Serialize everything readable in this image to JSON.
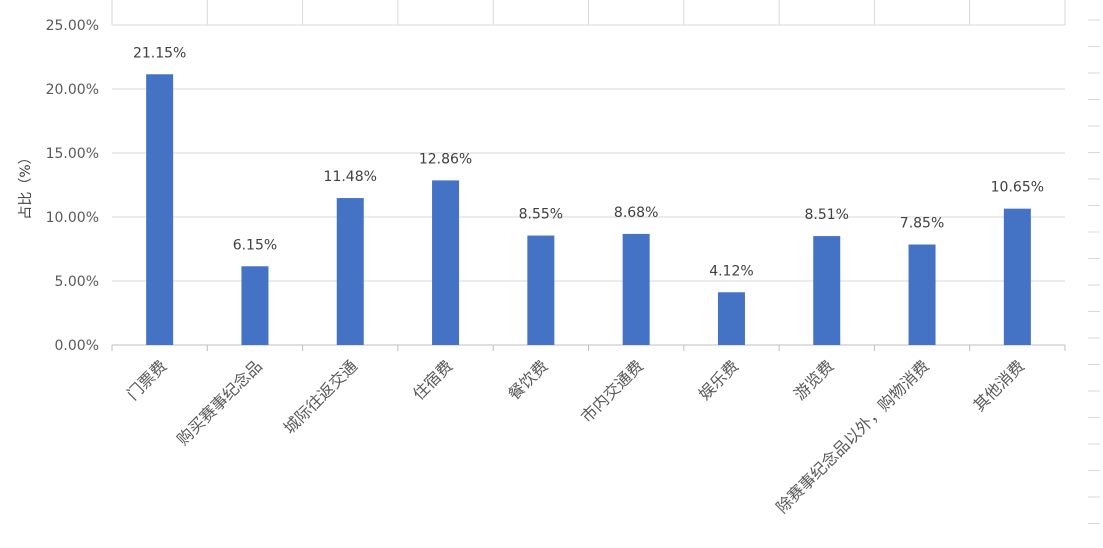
{
  "chart_data": {
    "type": "bar",
    "ylabel": "占比（%）",
    "ylim": [
      0,
      25
    ],
    "yticks": [
      "0.00%",
      "5.00%",
      "10.00%",
      "15.00%",
      "20.00%",
      "25.00%"
    ],
    "grid": true,
    "bar_color": "#4472C4",
    "categories": [
      "门票费",
      "购买赛事纪念品",
      "城际往返交通",
      "住宿费",
      "餐饮费",
      "市内交通费",
      "娱乐费",
      "游览费",
      "除赛事纪念品以外，购物消费",
      "其他消费"
    ],
    "values": [
      21.15,
      6.15,
      11.48,
      12.86,
      8.55,
      8.68,
      4.12,
      8.51,
      7.85,
      10.65
    ],
    "data_labels": [
      "21.15%",
      "6.15%",
      "11.48%",
      "12.86%",
      "8.55%",
      "8.68%",
      "4.12%",
      "8.51%",
      "7.85%",
      "10.65%"
    ]
  }
}
